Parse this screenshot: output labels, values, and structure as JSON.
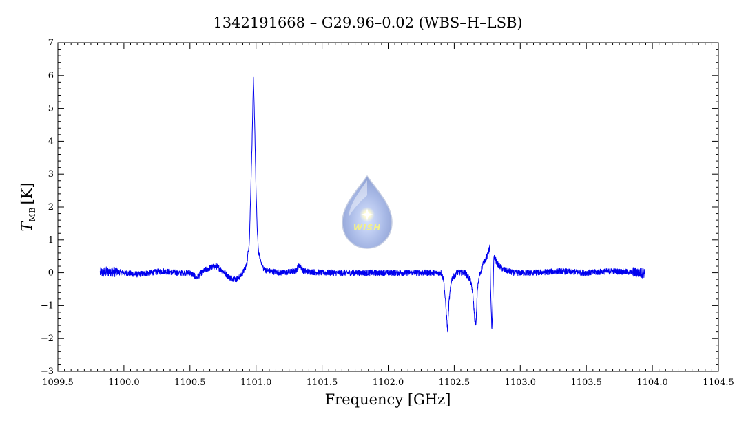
{
  "chart_data": {
    "type": "line",
    "title": "1342191668 – G29.96–0.02 (WBS–H–LSB)",
    "xlabel": "Frequency [GHz]",
    "ylabel_main": "T",
    "ylabel_sub": "MB",
    "ylabel_unit": "[K]",
    "xlim": [
      1099.5,
      1104.5
    ],
    "ylim": [
      -3,
      7
    ],
    "x_ticks": [
      1099.5,
      1100.0,
      1100.5,
      1101.0,
      1101.5,
      1102.0,
      1102.5,
      1103.0,
      1103.5,
      1104.0,
      1104.5
    ],
    "x_tick_labels": [
      "1099.5",
      "1100.0",
      "1100.5",
      "1101.0",
      "1101.5",
      "1102.0",
      "1102.5",
      "1103.0",
      "1103.5",
      "1104.0",
      "1104.5"
    ],
    "y_ticks": [
      -3,
      -2,
      -1,
      0,
      1,
      2,
      3,
      4,
      5,
      6,
      7
    ],
    "y_tick_labels": [
      "−3",
      "−2",
      "−1",
      "0",
      "1",
      "2",
      "3",
      "4",
      "5",
      "6",
      "7"
    ],
    "grid": false,
    "series_color": "#0000ee",
    "series": [
      {
        "x": [
          1099.82,
          1099.9,
          1100.0,
          1100.1,
          1100.2,
          1100.3,
          1100.4,
          1100.5,
          1100.55,
          1100.6,
          1100.65,
          1100.7,
          1100.75,
          1100.8,
          1100.85,
          1100.88,
          1100.9,
          1100.93,
          1100.95,
          1100.97,
          1100.98,
          1100.99,
          1101.0,
          1101.01,
          1101.02,
          1101.04,
          1101.06,
          1101.1,
          1101.2,
          1101.3,
          1101.33,
          1101.36,
          1101.5,
          1101.7,
          1101.9,
          1102.0,
          1102.1,
          1102.2,
          1102.3,
          1102.4,
          1102.42,
          1102.44,
          1102.45,
          1102.46,
          1102.48,
          1102.52,
          1102.58,
          1102.62,
          1102.64,
          1102.655,
          1102.665,
          1102.675,
          1102.69,
          1102.72,
          1102.75,
          1102.77,
          1102.775,
          1102.785,
          1102.79,
          1102.8,
          1102.83,
          1102.87,
          1102.95,
          1103.1,
          1103.3,
          1103.5,
          1103.7,
          1103.9,
          1103.94
        ],
        "y": [
          0.0,
          0.05,
          0.0,
          -0.05,
          0.0,
          0.05,
          0.0,
          0.0,
          -0.15,
          0.05,
          0.15,
          0.2,
          0.05,
          -0.15,
          -0.2,
          -0.1,
          0.0,
          0.25,
          1.0,
          4.0,
          5.9,
          4.5,
          2.5,
          1.2,
          0.6,
          0.3,
          0.1,
          0.05,
          0.0,
          0.05,
          0.25,
          0.05,
          0.0,
          0.0,
          0.0,
          0.0,
          0.0,
          0.0,
          0.0,
          0.0,
          -0.2,
          -1.2,
          -1.8,
          -0.9,
          -0.2,
          0.0,
          0.0,
          -0.2,
          -0.6,
          -1.4,
          -1.6,
          -0.5,
          -0.1,
          0.3,
          0.5,
          0.8,
          -0.5,
          -1.8,
          -1.2,
          0.5,
          0.25,
          0.1,
          0.0,
          0.0,
          0.05,
          0.0,
          0.05,
          0.0,
          0.0
        ]
      }
    ]
  },
  "logo": {
    "text": "WISH"
  }
}
